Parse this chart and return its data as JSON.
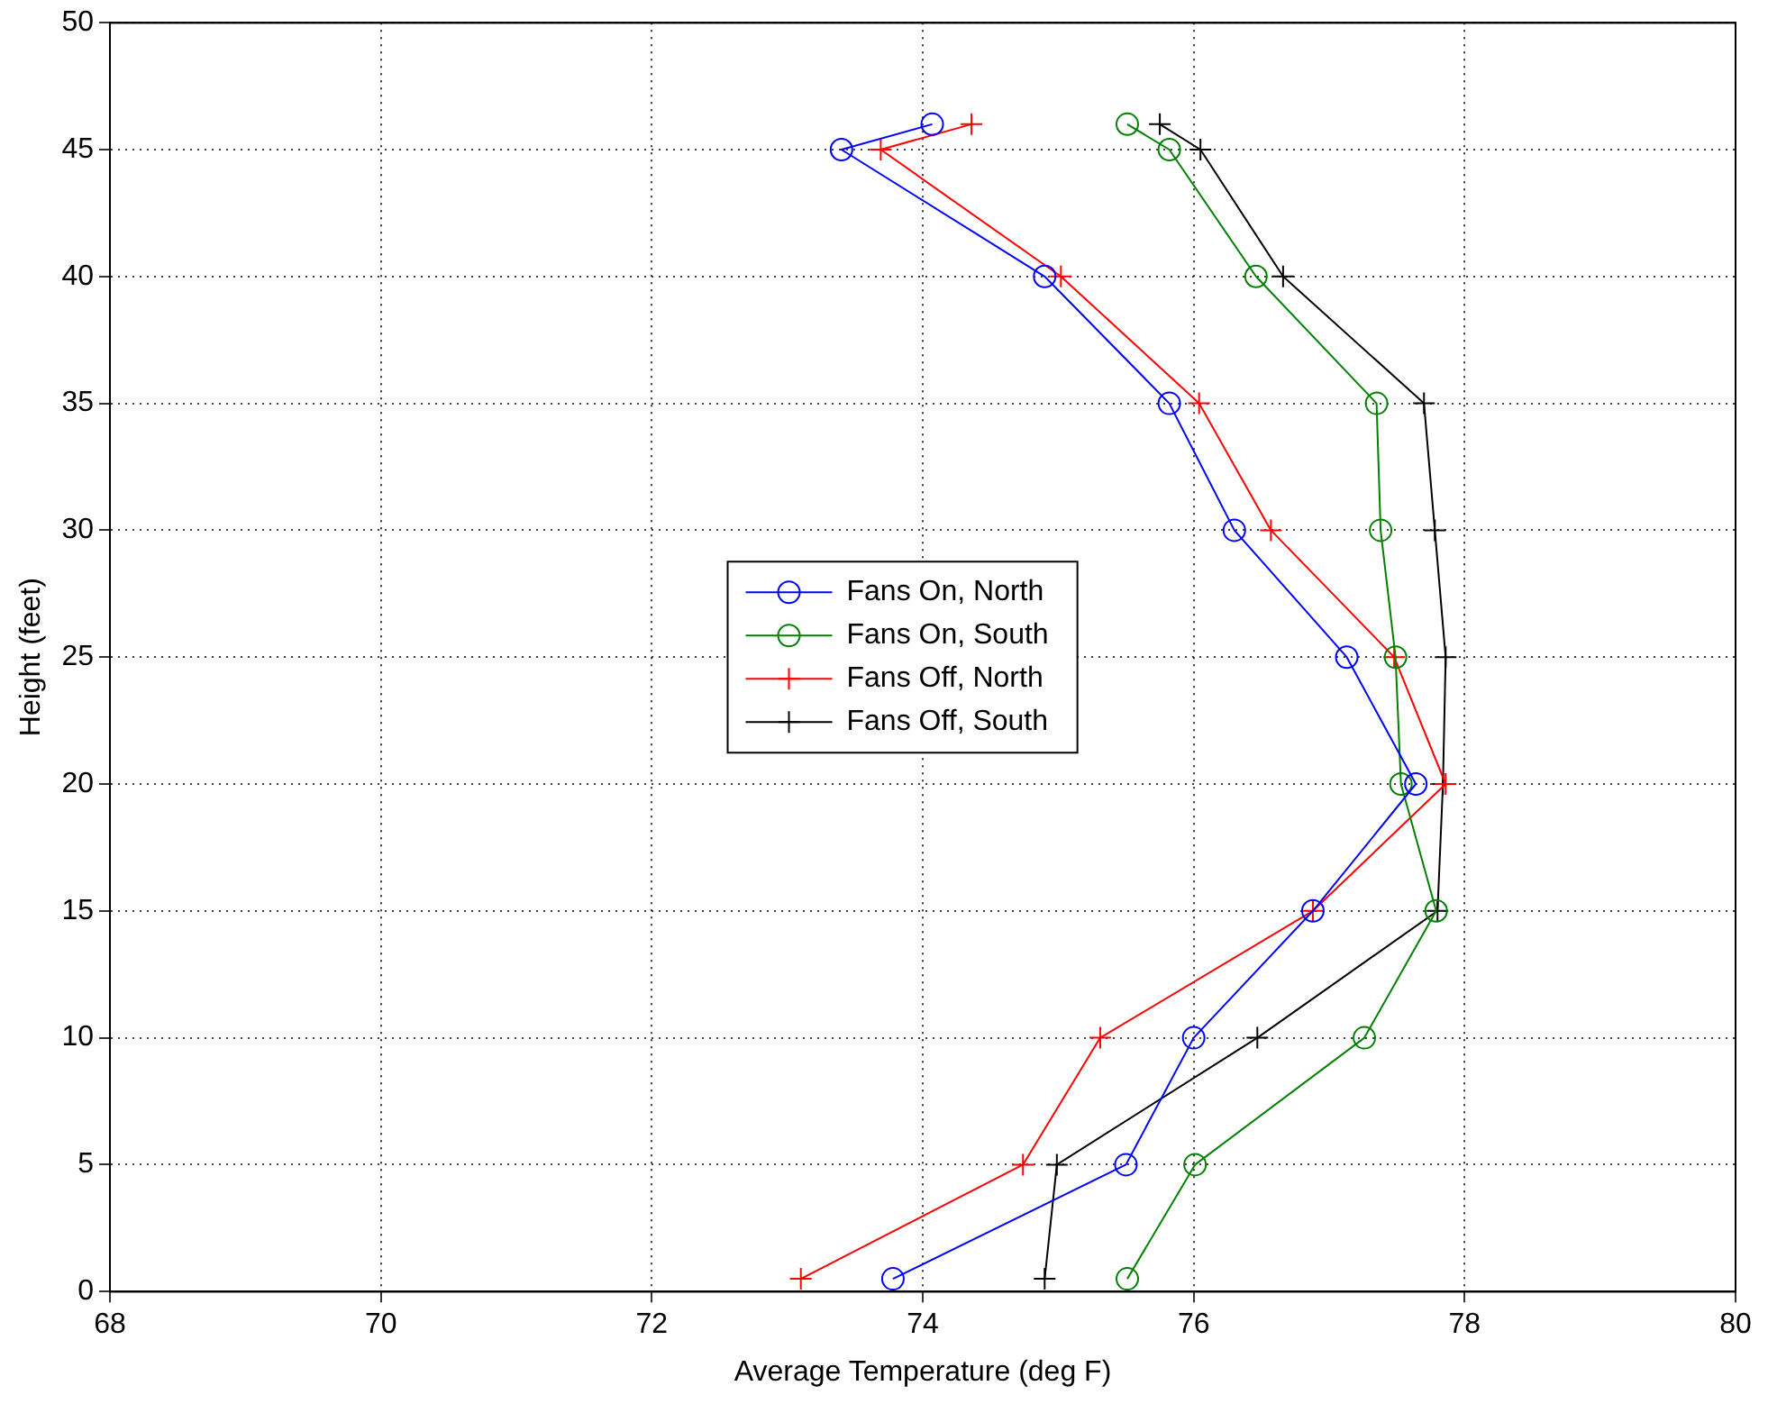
{
  "chart_data": {
    "type": "line",
    "xlabel": "Average Temperature (deg F)",
    "ylabel": "Height (feet)",
    "xlim": [
      68,
      80
    ],
    "xticks": [
      68,
      70,
      72,
      74,
      76,
      78,
      80
    ],
    "ylim": [
      0,
      50
    ],
    "yticks": [
      0,
      5,
      10,
      15,
      20,
      25,
      30,
      35,
      40,
      45,
      50
    ],
    "grid": true,
    "legend": "center",
    "line_style": "solid",
    "series": [
      {
        "name": "Fans On, North",
        "color": "#0000ff",
        "marker": "circle",
        "x": [
          74.07,
          73.4,
          74.9,
          75.82,
          76.3,
          77.13,
          77.64,
          76.88,
          76.0,
          75.5,
          73.78
        ],
        "values": [
          46,
          45,
          40,
          35,
          30,
          25,
          20,
          15,
          10,
          5,
          0.5
        ]
      },
      {
        "name": "Fans On, South",
        "color": "#008000",
        "marker": "circle",
        "x": [
          75.51,
          75.82,
          76.46,
          77.35,
          77.38,
          77.49,
          77.53,
          77.79,
          77.26,
          76.01,
          75.51
        ],
        "values": [
          46,
          45,
          40,
          35,
          30,
          25,
          20,
          15,
          10,
          5,
          0.5
        ]
      },
      {
        "name": "Fans Off, North",
        "color": "#ff0000",
        "marker": "cross",
        "x": [
          74.36,
          73.69,
          75.02,
          76.04,
          76.57,
          77.48,
          77.86,
          76.88,
          75.31,
          74.74,
          73.1
        ],
        "values": [
          46,
          45,
          40,
          35,
          30,
          25,
          20,
          15,
          10,
          5,
          0.5
        ]
      },
      {
        "name": "Fans Off, South",
        "color": "#000000",
        "marker": "cross",
        "x": [
          75.75,
          76.05,
          76.66,
          77.7,
          77.78,
          77.86,
          77.84,
          77.8,
          76.47,
          74.99,
          74.9
        ],
        "values": [
          46,
          45,
          40,
          35,
          30,
          25,
          20,
          15,
          10,
          5,
          0.5
        ]
      }
    ]
  }
}
